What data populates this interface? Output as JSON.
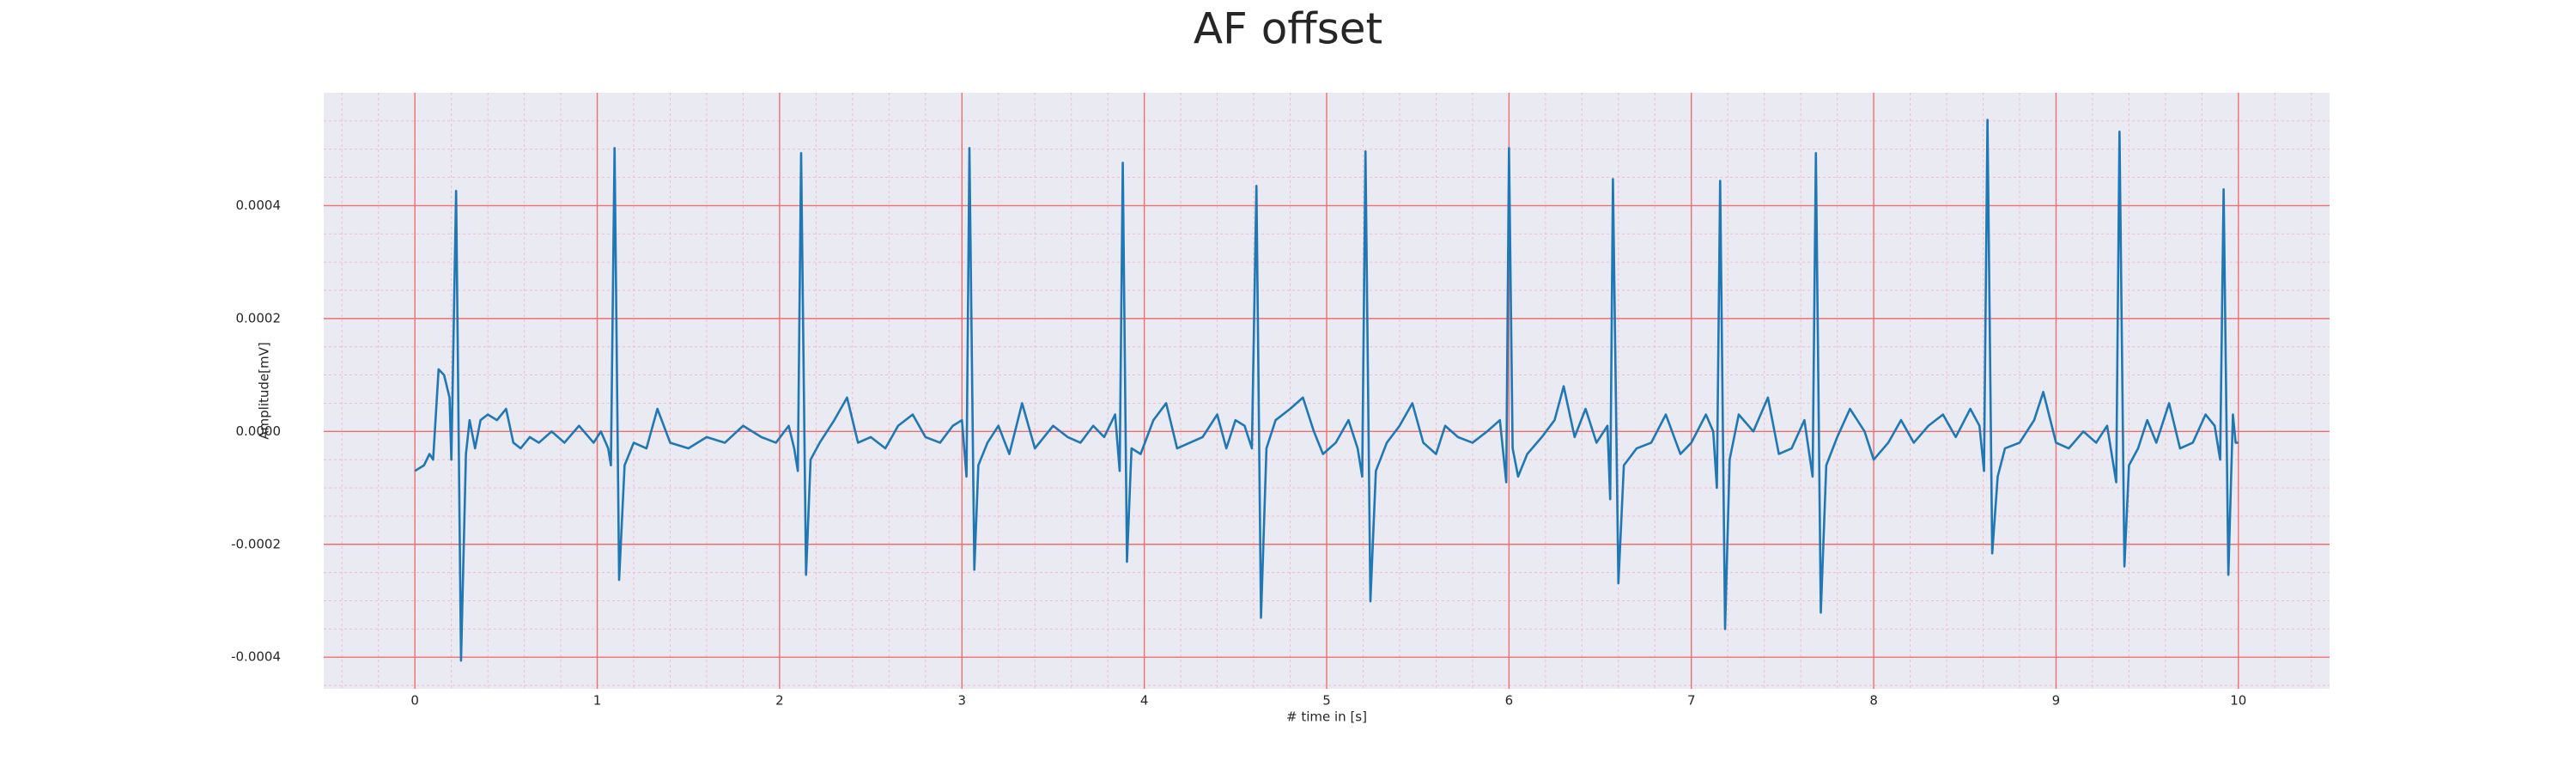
{
  "chart_data": {
    "type": "line",
    "title": "AF offset",
    "x_label": "# time in [s]",
    "y_label": "Amplitude[mV]",
    "color": "#1f77b4",
    "grid": true,
    "minor_grid": true,
    "xlim": [
      -0.5,
      10.5
    ],
    "ylim": [
      -0.000456,
      0.0006
    ],
    "xticks": [
      0,
      1,
      2,
      3,
      4,
      5,
      6,
      7,
      8,
      9,
      10
    ],
    "yticks": [
      {
        "value": -0.0004,
        "label": "-0.0004"
      },
      {
        "value": -0.0002,
        "label": "-0.0002"
      },
      {
        "value": 0,
        "label": "0.0000"
      },
      {
        "value": 0.0002,
        "label": "0.0002"
      },
      {
        "value": 0.0004,
        "label": "0.0004"
      }
    ],
    "x": [
      0,
      0.05,
      0.08,
      0.1,
      0.13,
      0.16,
      0.19,
      0.2,
      0.226,
      0.253,
      0.28,
      0.3,
      0.33,
      0.36,
      0.4,
      0.45,
      0.5,
      0.54,
      0.58,
      0.63,
      0.68,
      0.75,
      0.82,
      0.9,
      0.98,
      1.02,
      1.06,
      1.075,
      1.095,
      1.12,
      1.15,
      1.2,
      1.27,
      1.33,
      1.4,
      1.5,
      1.6,
      1.7,
      1.8,
      1.9,
      1.98,
      2.05,
      2.08,
      2.1,
      2.118,
      2.145,
      2.17,
      2.22,
      2.3,
      2.37,
      2.43,
      2.5,
      2.58,
      2.65,
      2.73,
      2.8,
      2.88,
      2.95,
      3.0,
      3.025,
      3.041,
      3.068,
      3.09,
      3.14,
      3.2,
      3.26,
      3.33,
      3.4,
      3.5,
      3.58,
      3.65,
      3.72,
      3.78,
      3.84,
      3.865,
      3.882,
      3.905,
      3.93,
      3.98,
      4.05,
      4.12,
      4.18,
      4.25,
      4.32,
      4.4,
      4.45,
      4.5,
      4.55,
      4.59,
      4.615,
      4.64,
      4.67,
      4.72,
      4.8,
      4.87,
      4.93,
      4.98,
      5.05,
      5.12,
      5.17,
      5.195,
      5.213,
      5.24,
      5.27,
      5.33,
      5.4,
      5.47,
      5.53,
      5.6,
      5.65,
      5.72,
      5.8,
      5.88,
      5.95,
      5.985,
      6.0,
      6.02,
      6.05,
      6.1,
      6.18,
      6.25,
      6.3,
      6.36,
      6.42,
      6.48,
      6.54,
      6.555,
      6.57,
      6.6,
      6.63,
      6.7,
      6.78,
      6.86,
      6.94,
      7.0,
      7.08,
      7.12,
      7.14,
      7.158,
      7.185,
      7.21,
      7.26,
      7.34,
      7.42,
      7.48,
      7.55,
      7.62,
      7.665,
      7.683,
      7.71,
      7.74,
      7.8,
      7.87,
      7.95,
      8.0,
      8.08,
      8.15,
      8.22,
      8.3,
      8.38,
      8.45,
      8.53,
      8.58,
      8.605,
      8.624,
      8.65,
      8.68,
      8.72,
      8.8,
      8.88,
      8.93,
      9.0,
      9.07,
      9.15,
      9.22,
      9.28,
      9.33,
      9.348,
      9.375,
      9.4,
      9.45,
      9.5,
      9.55,
      9.62,
      9.68,
      9.75,
      9.82,
      9.87,
      9.9,
      9.919,
      9.945,
      9.97,
      9.985,
      10.0
    ],
    "values": [
      -7e-05,
      -6e-05,
      -4e-05,
      -5e-05,
      0.00011,
      0.0001,
      6e-05,
      -5e-05,
      0.000426,
      -0.000406,
      -4e-05,
      2e-05,
      -3e-05,
      2e-05,
      3e-05,
      2e-05,
      4e-05,
      -2e-05,
      -3e-05,
      -1e-05,
      -2e-05,
      0,
      -2e-05,
      1e-05,
      -2e-05,
      0,
      -3e-05,
      -6e-05,
      0.000502,
      -0.000263,
      -6e-05,
      -2e-05,
      -3e-05,
      4e-05,
      -2e-05,
      -3e-05,
      -1e-05,
      -2e-05,
      1e-05,
      -1e-05,
      -2e-05,
      1e-05,
      -3e-05,
      -7e-05,
      0.000493,
      -0.000254,
      -5e-05,
      -2e-05,
      2e-05,
      6e-05,
      -2e-05,
      -1e-05,
      -3e-05,
      1e-05,
      3e-05,
      -1e-05,
      -2e-05,
      1e-05,
      2e-05,
      -8e-05,
      0.000502,
      -0.000245,
      -6e-05,
      -2e-05,
      1e-05,
      -4e-05,
      5e-05,
      -3e-05,
      1e-05,
      -1e-05,
      -2e-05,
      1e-05,
      -1e-05,
      3e-05,
      -7e-05,
      0.000476,
      -0.000231,
      -3e-05,
      -4e-05,
      2e-05,
      5e-05,
      -3e-05,
      -2e-05,
      -1e-05,
      3e-05,
      -3e-05,
      2e-05,
      1e-05,
      -3e-05,
      0.000435,
      -0.00033,
      -3e-05,
      2e-05,
      4e-05,
      6e-05,
      0,
      -4e-05,
      -2e-05,
      2e-05,
      -3e-05,
      -8e-05,
      0.000496,
      -0.000301,
      -7e-05,
      -2e-05,
      1e-05,
      5e-05,
      -2e-05,
      -4e-05,
      1e-05,
      -1e-05,
      -2e-05,
      0,
      2e-05,
      -9e-05,
      0.000502,
      -3e-05,
      -8e-05,
      -4e-05,
      -1e-05,
      2e-05,
      8e-05,
      -1e-05,
      4e-05,
      -2e-05,
      1e-05,
      -0.00012,
      0.000447,
      -0.000269,
      -6e-05,
      -3e-05,
      -2e-05,
      3e-05,
      -4e-05,
      -2e-05,
      3e-05,
      0,
      -0.0001,
      0.000444,
      -0.00035,
      -5e-05,
      3e-05,
      0,
      6e-05,
      -4e-05,
      -3e-05,
      2e-05,
      -8e-05,
      0.000493,
      -0.000321,
      -6e-05,
      -1e-05,
      4e-05,
      0,
      -5e-05,
      -2e-05,
      2e-05,
      -2e-05,
      1e-05,
      3e-05,
      -1e-05,
      4e-05,
      1e-05,
      -7e-05,
      0.000552,
      -0.000216,
      -8e-05,
      -3e-05,
      -2e-05,
      2e-05,
      7e-05,
      -2e-05,
      -3e-05,
      0,
      -2e-05,
      1e-05,
      -9e-05,
      0.000531,
      -0.000239,
      -6e-05,
      -3e-05,
      2e-05,
      -2e-05,
      5e-05,
      -3e-05,
      -2e-05,
      3e-05,
      1e-05,
      -5e-05,
      0.000429,
      -0.000254,
      3e-05,
      -2e-05,
      -2e-05
    ]
  }
}
